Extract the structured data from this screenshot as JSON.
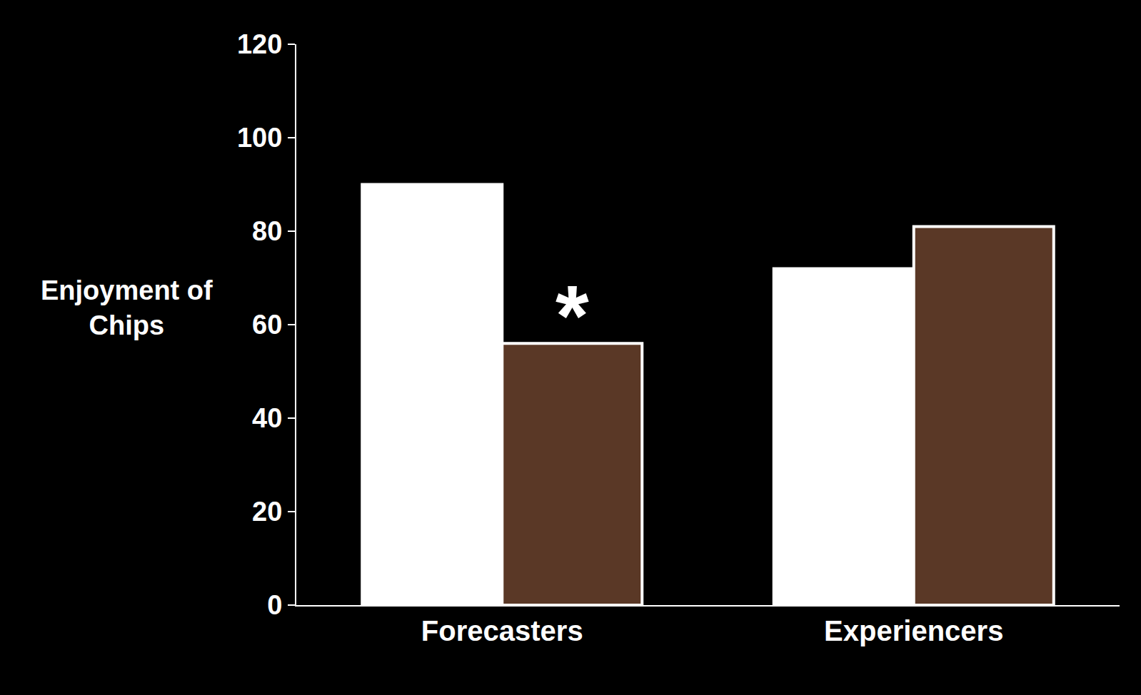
{
  "chart_data": {
    "type": "bar",
    "ylabel": "Enjoyment of Chips",
    "categories": [
      "Forecasters",
      "Experiencers"
    ],
    "series": [
      {
        "color": "#ffffff",
        "values": [
          90,
          72
        ]
      },
      {
        "color": "#5a3826",
        "values": [
          56,
          81
        ]
      }
    ],
    "ylim": [
      0,
      120
    ],
    "yticks": [
      0,
      20,
      40,
      60,
      80,
      100,
      120
    ],
    "grid": false,
    "annotations": [
      {
        "text": "*",
        "category": "Forecasters"
      }
    ]
  }
}
